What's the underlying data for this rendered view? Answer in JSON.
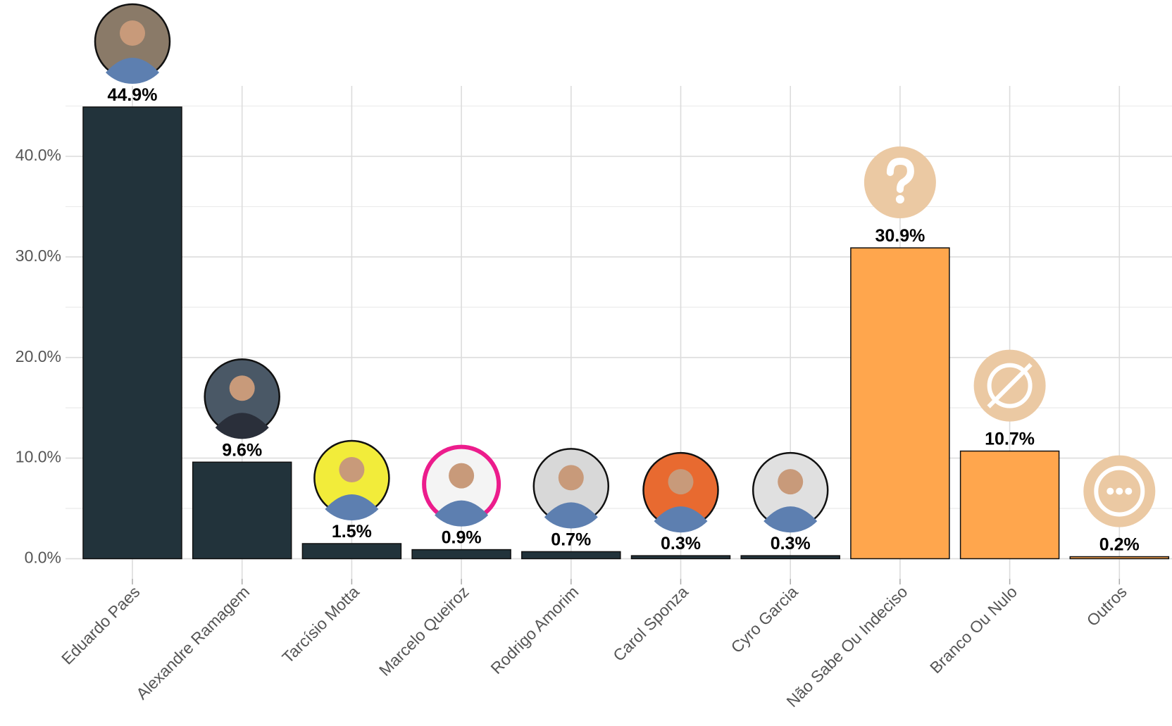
{
  "chart_data": {
    "type": "bar",
    "categories": [
      "Eduardo Paes",
      "Alexandre Ramagem",
      "Tarcísio Motta",
      "Marcelo Queiroz",
      "Rodrigo Amorim",
      "Carol Sponza",
      "Cyro Garcia",
      "Não Sabe Ou Indeciso",
      "Branco Ou Nulo",
      "Outros"
    ],
    "values": [
      44.9,
      9.6,
      1.5,
      0.9,
      0.7,
      0.3,
      0.3,
      30.9,
      10.7,
      0.2
    ],
    "value_labels": [
      "44.9%",
      "9.6%",
      "1.5%",
      "0.9%",
      "0.7%",
      "0.3%",
      "0.3%",
      "30.9%",
      "10.7%",
      "0.2%"
    ],
    "colors": [
      "#22333b",
      "#22333b",
      "#22333b",
      "#22333b",
      "#22333b",
      "#22333b",
      "#22333b",
      "#ffa64d",
      "#ffa64d",
      "#ffa64d"
    ],
    "ylim": [
      -2,
      47
    ],
    "yticks": [
      {
        "value": 0,
        "label": "0.0%"
      },
      {
        "value": 10,
        "label": "10.0%"
      },
      {
        "value": 20,
        "label": "20.0%"
      },
      {
        "value": 30,
        "label": "30.0%"
      },
      {
        "value": 40,
        "label": "40.0%"
      }
    ],
    "grid": true
  }
}
